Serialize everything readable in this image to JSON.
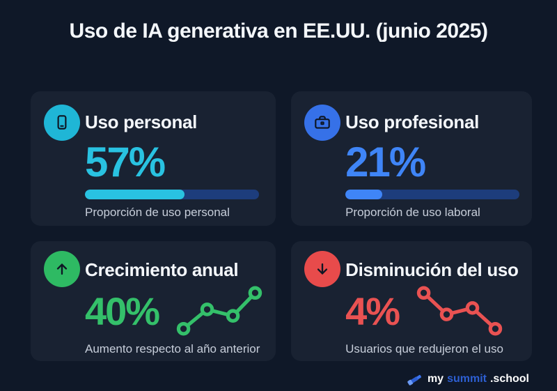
{
  "page": {
    "title": "Uso de IA generativa en EE.UU. (junio 2025)",
    "background": "#0f1828",
    "card_background": "#192232"
  },
  "cards": [
    {
      "title": "Uso personal",
      "value": "57%",
      "percent": 57,
      "subtitle": "Proporción de uso personal",
      "icon": "smartphone-icon",
      "icon_bg": "#1fb6d6",
      "accent": "#29c2e1",
      "bar_track": "#1d3d7c",
      "visual": "progress-bar"
    },
    {
      "title": "Uso profesional",
      "value": "21%",
      "percent": 21,
      "subtitle": "Proporción de uso laboral",
      "icon": "briefcase-icon",
      "icon_bg": "#3671e8",
      "accent": "#3f85f7",
      "bar_track": "#1d3d7c",
      "visual": "progress-bar"
    },
    {
      "title": "Crecimiento anual",
      "value": "40%",
      "percent": 40,
      "subtitle": "Aumento respecto al año anterior",
      "icon": "arrow-up-icon",
      "icon_bg": "#2eba63",
      "accent": "#34c06a",
      "visual": "sparkline",
      "trend": "up",
      "spark_points": [
        [
          10,
          60
        ],
        [
          43,
          33
        ],
        [
          79,
          42
        ],
        [
          110,
          10
        ]
      ]
    },
    {
      "title": "Disminución del uso",
      "value": "4%",
      "percent": 4,
      "subtitle": "Usuarios que redujeron el uso",
      "icon": "arrow-down-icon",
      "icon_bg": "#e84b4b",
      "accent": "#e95252",
      "visual": "sparkline",
      "trend": "down",
      "spark_points": [
        [
          10,
          10
        ],
        [
          42,
          40
        ],
        [
          78,
          31
        ],
        [
          110,
          60
        ]
      ]
    }
  ],
  "footer": {
    "icon": "telescope-icon",
    "brand": [
      {
        "text": "my",
        "color": "#ffffff"
      },
      {
        "text": "summit",
        "color": "#2d5fd3"
      },
      {
        "text": ".school",
        "color": "#ffffff"
      }
    ]
  },
  "chart_data": {
    "type": "table",
    "title": "Uso de IA generativa en EE.UU. (junio 2025)",
    "metrics": [
      {
        "label": "Uso personal",
        "value_pct": 57,
        "visual": "progress-bar",
        "description": "Proporción de uso personal",
        "color": "#29c2e1"
      },
      {
        "label": "Uso profesional",
        "value_pct": 21,
        "visual": "progress-bar",
        "description": "Proporción de uso laboral",
        "color": "#3f85f7"
      },
      {
        "label": "Crecimiento anual",
        "value_pct": 40,
        "visual": "sparkline-up",
        "description": "Aumento respecto al año anterior",
        "color": "#34c06a"
      },
      {
        "label": "Disminución del uso",
        "value_pct": 4,
        "visual": "sparkline-down",
        "description": "Usuarios que redujeron el uso",
        "color": "#e95252"
      }
    ]
  }
}
